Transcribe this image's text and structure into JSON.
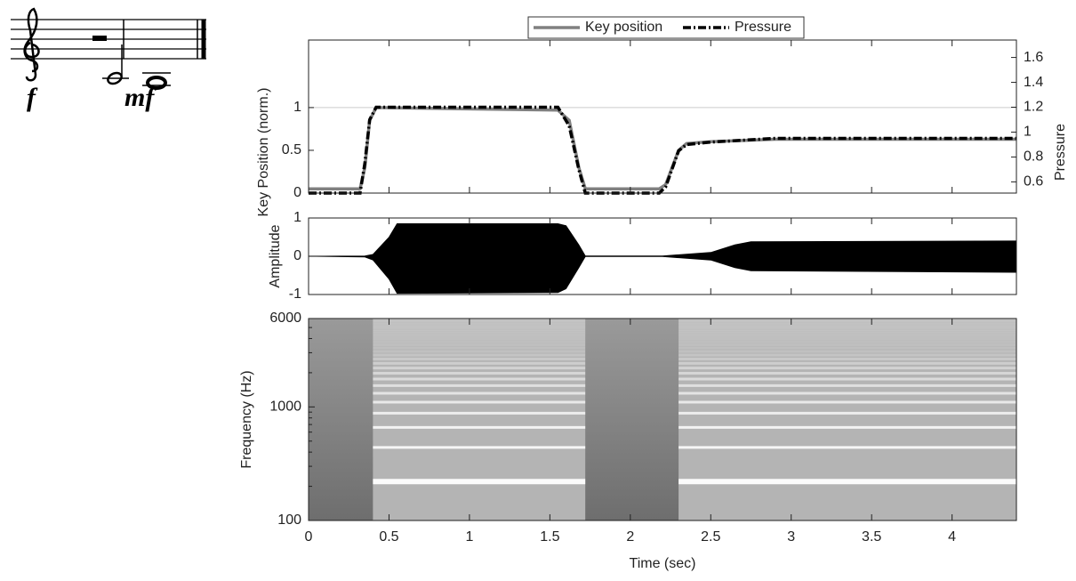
{
  "score": {
    "dynamics": [
      "f",
      "mf"
    ]
  },
  "chart_data": [
    {
      "type": "line",
      "ylabel": "Key Position (norm.)",
      "y2label": "Pressure",
      "x": [
        0,
        0.32,
        0.35,
        0.38,
        0.42,
        1.55,
        1.62,
        1.68,
        1.72,
        2.18,
        2.22,
        2.3,
        2.35,
        2.5,
        2.9,
        4.4
      ],
      "series": [
        {
          "name": "Key position",
          "color": "#808080",
          "values": [
            0.05,
            0.05,
            0.3,
            0.85,
            1,
            0.97,
            0.85,
            0.3,
            0.05,
            0.05,
            0.1,
            0.5,
            0.58,
            0.6,
            0.63,
            0.63
          ]
        },
        {
          "name": "Pressure",
          "color": "#000000",
          "axis": "y2",
          "values": [
            0.51,
            0.51,
            0.75,
            1.1,
            1.2,
            1.2,
            1.05,
            0.7,
            0.51,
            0.51,
            0.56,
            0.85,
            0.9,
            0.92,
            0.95,
            0.95
          ]
        }
      ],
      "xlim": [
        0,
        4.4
      ],
      "xticks": [
        0,
        0.5,
        1,
        1.5,
        2,
        2.5,
        3,
        3.5,
        4
      ],
      "ylim": [
        0,
        1.79
      ],
      "yticks": [
        0,
        0.5,
        1
      ],
      "hline": 1,
      "y2lim": [
        0.51,
        1.74
      ],
      "y2ticks": [
        0.6,
        0.8,
        1,
        1.2,
        1.4,
        1.6
      ],
      "legend": "top"
    },
    {
      "type": "envelope",
      "ylabel": "Amplitude",
      "x": [
        0,
        0.35,
        0.4,
        0.5,
        0.55,
        1.55,
        1.6,
        1.68,
        1.72,
        2.2,
        2.5,
        2.65,
        2.75,
        4.4
      ],
      "upper": [
        0,
        0.01,
        0.05,
        0.5,
        0.85,
        0.85,
        0.8,
        0.3,
        0.01,
        0.01,
        0.1,
        0.3,
        0.38,
        0.4
      ],
      "lower": [
        0,
        -0.02,
        -0.1,
        -0.6,
        -0.97,
        -0.95,
        -0.85,
        -0.3,
        -0.01,
        -0.01,
        -0.1,
        -0.3,
        -0.38,
        -0.42
      ],
      "xlim": [
        0,
        4.4
      ],
      "xticks": [
        0,
        0.5,
        1,
        1.5,
        2,
        2.5,
        3,
        3.5,
        4
      ],
      "ylim": [
        -1,
        1
      ],
      "yticks": [
        -1,
        0,
        1
      ]
    },
    {
      "type": "spectrogram",
      "xlabel": "Time (sec)",
      "ylabel": "Frequency (Hz)",
      "notes": [
        {
          "start": 0.4,
          "end": 1.72,
          "fundamental": 220
        },
        {
          "start": 2.3,
          "end": 4.4,
          "fundamental": 220
        }
      ],
      "xlim": [
        0,
        4.4
      ],
      "xticks": [
        0,
        0.5,
        1,
        1.5,
        2,
        2.5,
        3,
        3.5,
        4
      ],
      "ylim": [
        100,
        6000
      ],
      "yticks": [
        100,
        1000,
        6000
      ],
      "log_y": true
    }
  ]
}
